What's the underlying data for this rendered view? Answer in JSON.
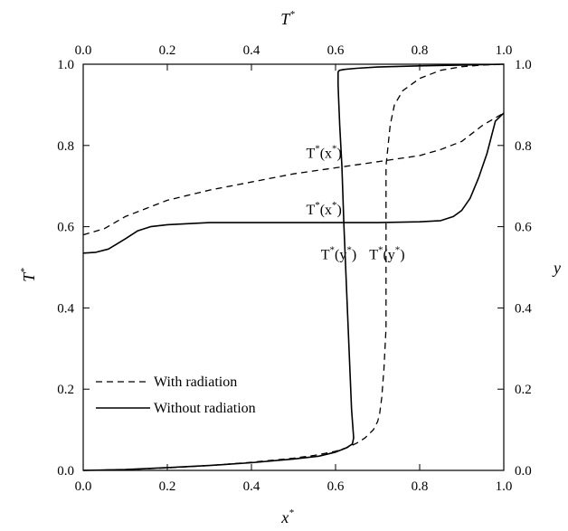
{
  "chart_data": {
    "type": "line",
    "axes": {
      "x_bottom": {
        "label": "x",
        "label_sup": "*",
        "range": [
          0.0,
          1.0
        ],
        "ticks": [
          "0.0",
          "0.2",
          "0.4",
          "0.6",
          "0.8",
          "1.0"
        ]
      },
      "x_top": {
        "label": "T",
        "label_sup": "*",
        "range": [
          0.0,
          1.0
        ],
        "ticks": [
          "0.0",
          "0.2",
          "0.4",
          "0.6",
          "0.8",
          "1.0"
        ]
      },
      "y_left": {
        "label": "T",
        "label_sup": "*",
        "range": [
          0.0,
          1.0
        ],
        "ticks": [
          "0.0",
          "0.2",
          "0.4",
          "0.6",
          "0.8",
          "1.0"
        ]
      },
      "y_right": {
        "label": "y",
        "range": [
          0.0,
          1.0
        ],
        "ticks": [
          "0.0",
          "0.2",
          "0.4",
          "0.6",
          "0.8",
          "1.0"
        ]
      }
    },
    "grid": false,
    "legend": {
      "placement": "bottom-left",
      "entries": [
        {
          "name": "With radiation",
          "style": "dashed"
        },
        {
          "name": "Without radiation",
          "style": "solid"
        }
      ]
    },
    "annotations": [
      {
        "text": "T",
        "sup1": "*",
        "mid": "(x",
        "sup2": "*",
        "end": ")",
        "x": 0.53,
        "y": 0.77
      },
      {
        "text": "T",
        "sup1": "*",
        "mid": "(x",
        "sup2": "*",
        "end": ")",
        "x": 0.53,
        "y": 0.63
      },
      {
        "text": "T",
        "sup1": "*",
        "mid": "(y",
        "sup2": "*",
        "end": ")",
        "x": 0.565,
        "y": 0.52
      },
      {
        "text": "T",
        "sup1": "*",
        "mid": "(y",
        "sup2": "*",
        "end": ")",
        "x": 0.68,
        "y": 0.52
      }
    ],
    "series": [
      {
        "name": "With radiation",
        "style": "dashed",
        "kind": "T_vs_x",
        "x": [
          0.0,
          0.05,
          0.1,
          0.15,
          0.2,
          0.3,
          0.4,
          0.5,
          0.6,
          0.7,
          0.8,
          0.85,
          0.9,
          0.95,
          1.0
        ],
        "y": [
          0.58,
          0.595,
          0.625,
          0.645,
          0.665,
          0.69,
          0.71,
          0.73,
          0.745,
          0.76,
          0.775,
          0.79,
          0.81,
          0.85,
          0.88
        ]
      },
      {
        "name": "Without radiation",
        "style": "solid",
        "kind": "T_vs_x",
        "x": [
          0.0,
          0.03,
          0.06,
          0.1,
          0.13,
          0.16,
          0.2,
          0.3,
          0.4,
          0.5,
          0.6,
          0.7,
          0.8,
          0.85,
          0.88,
          0.9,
          0.92,
          0.94,
          0.96,
          0.98,
          1.0
        ],
        "y": [
          0.535,
          0.537,
          0.545,
          0.57,
          0.59,
          0.6,
          0.605,
          0.61,
          0.61,
          0.61,
          0.61,
          0.61,
          0.612,
          0.615,
          0.625,
          0.64,
          0.67,
          0.72,
          0.78,
          0.86,
          0.88
        ]
      },
      {
        "name": "With radiation",
        "style": "dashed",
        "kind": "y_vs_T",
        "T": [
          0.0,
          0.1,
          0.2,
          0.3,
          0.4,
          0.5,
          0.55,
          0.6,
          0.63,
          0.65,
          0.67,
          0.69,
          0.7,
          0.705,
          0.71,
          0.715,
          0.72,
          0.72,
          0.72,
          0.72,
          0.72,
          0.725,
          0.73,
          0.74,
          0.76,
          0.8,
          0.85,
          0.9,
          0.95,
          1.0
        ],
        "y": [
          0.0,
          0.002,
          0.006,
          0.012,
          0.02,
          0.03,
          0.037,
          0.047,
          0.057,
          0.067,
          0.08,
          0.1,
          0.12,
          0.14,
          0.18,
          0.25,
          0.35,
          0.45,
          0.55,
          0.65,
          0.75,
          0.8,
          0.85,
          0.9,
          0.935,
          0.965,
          0.985,
          0.994,
          0.998,
          1.0
        ]
      },
      {
        "name": "Without radiation",
        "style": "solid",
        "kind": "y_vs_T",
        "T": [
          0.0,
          0.1,
          0.2,
          0.3,
          0.4,
          0.5,
          0.56,
          0.6,
          0.625,
          0.64,
          0.643,
          0.638,
          0.632,
          0.626,
          0.62,
          0.615,
          0.61,
          0.607,
          0.606,
          0.606,
          0.606,
          0.607,
          0.61,
          0.62,
          0.65,
          0.7,
          0.8,
          0.9,
          1.0
        ],
        "y": [
          0.0,
          0.002,
          0.007,
          0.012,
          0.019,
          0.028,
          0.035,
          0.045,
          0.055,
          0.065,
          0.08,
          0.15,
          0.3,
          0.45,
          0.6,
          0.75,
          0.85,
          0.92,
          0.95,
          0.97,
          0.98,
          0.983,
          0.985,
          0.987,
          0.99,
          0.993,
          0.996,
          0.998,
          1.0
        ]
      }
    ]
  }
}
